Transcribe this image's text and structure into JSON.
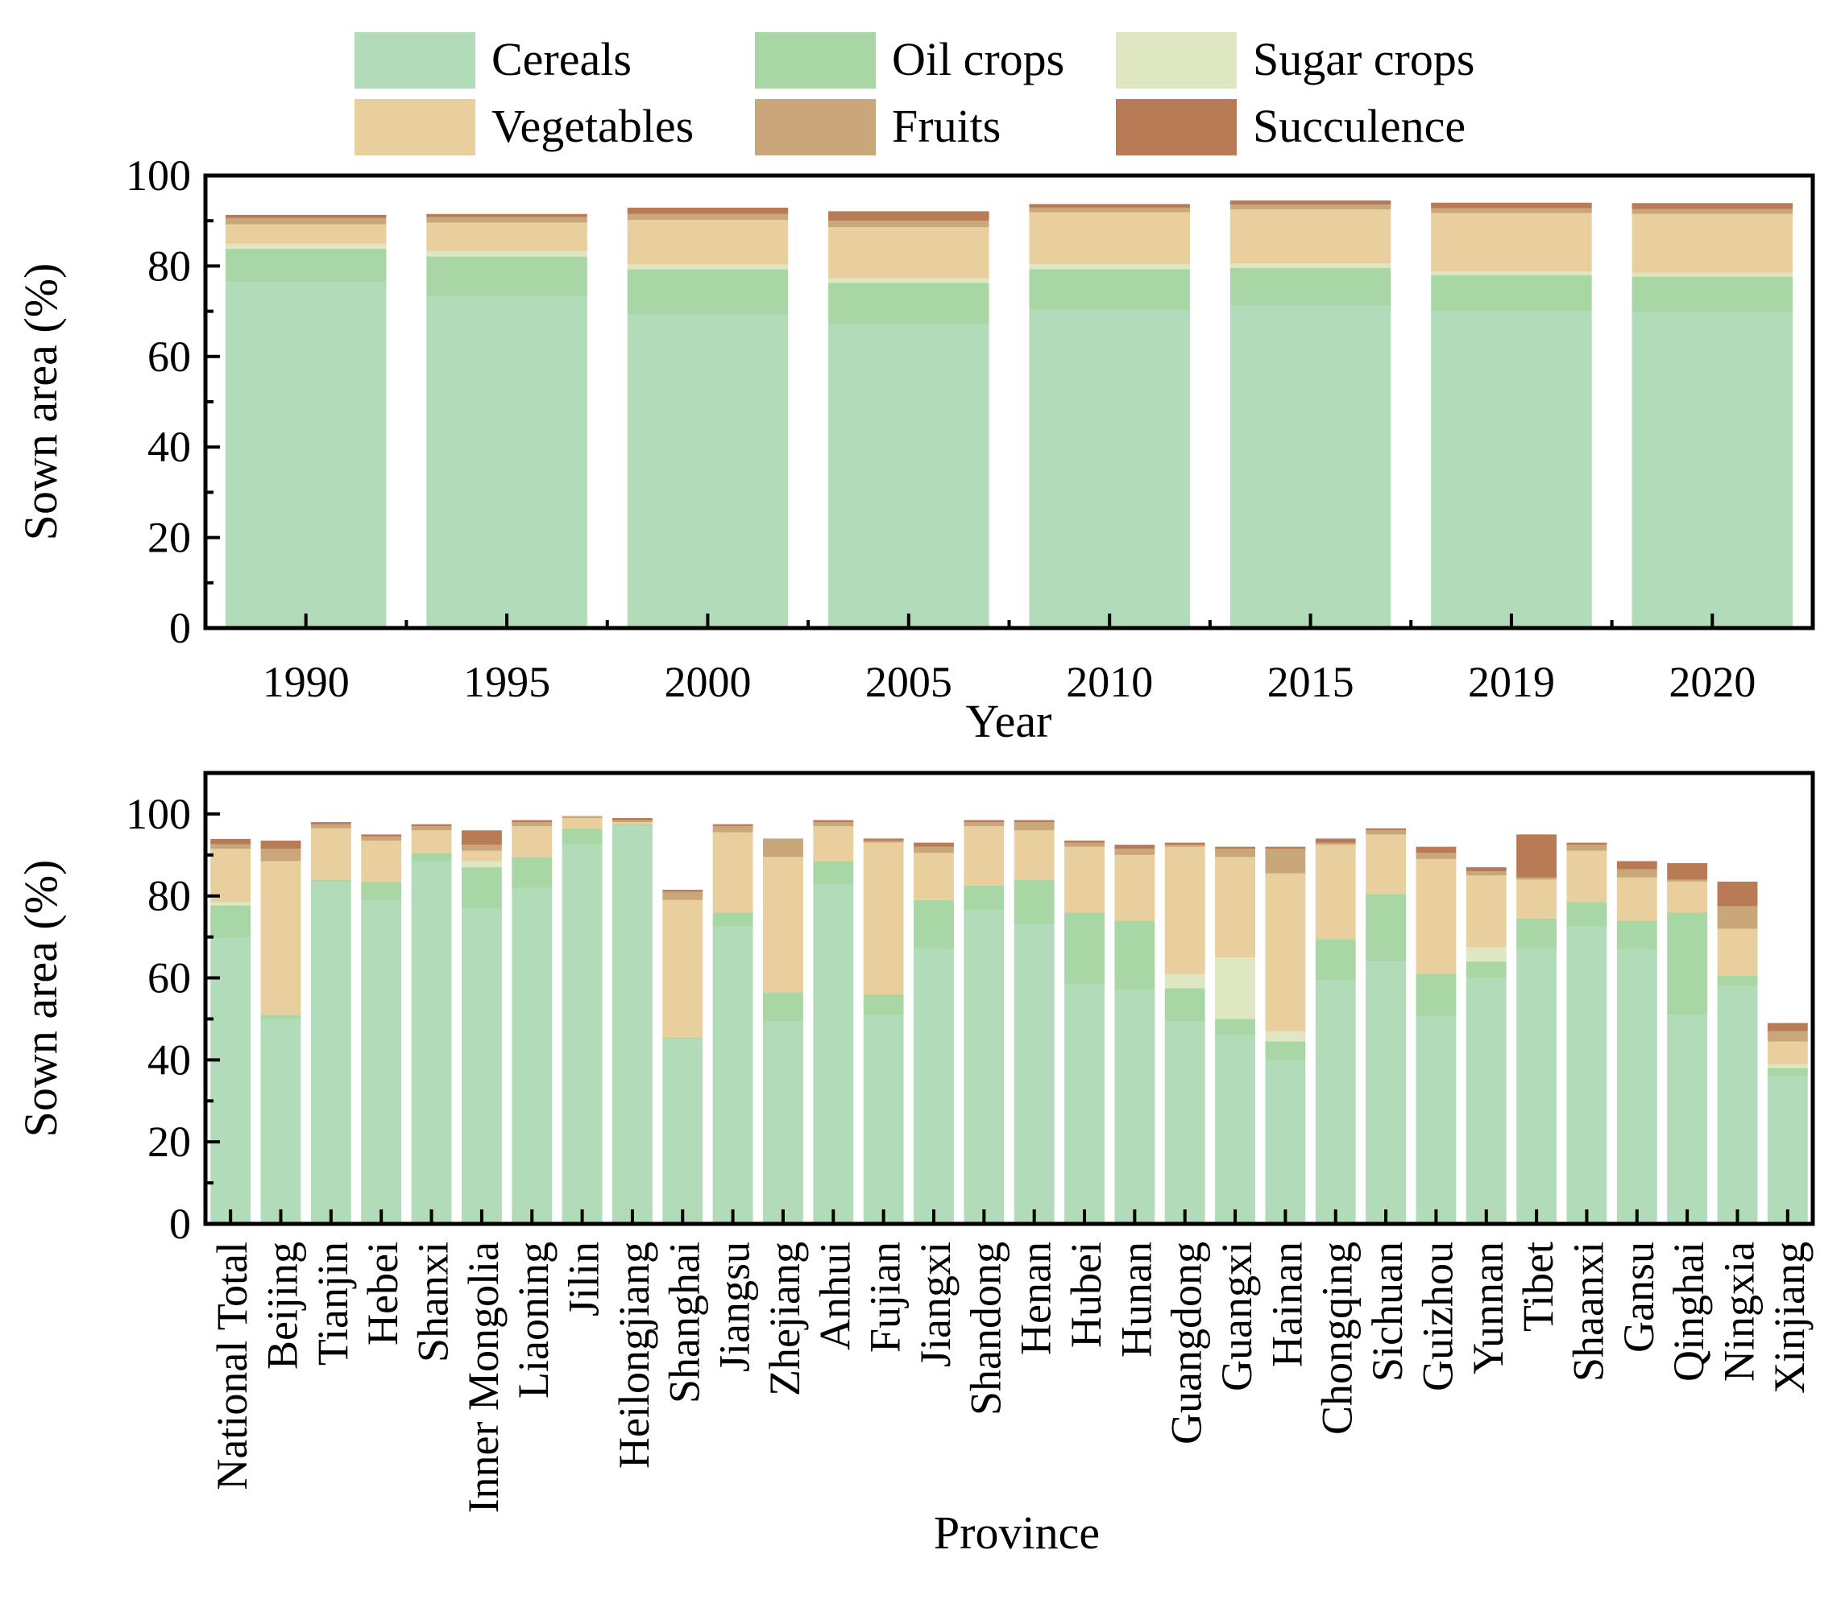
{
  "colors": {
    "Cereals": "#b2dbb9",
    "Oil crops": "#a9d6a5",
    "Sugar crops": "#dfe6c2",
    "Vegetables": "#e8cf9d",
    "Fruits": "#c9a77b",
    "Succulence": "#b97a56"
  },
  "chart_data": [
    {
      "type": "bar",
      "stacked": true,
      "title": "",
      "xlabel": "Year",
      "ylabel": "Sown area (%)",
      "ylim": [
        0,
        100
      ],
      "yticks": [
        0,
        20,
        40,
        60,
        80,
        100
      ],
      "legend": [
        "Cereals",
        "Oil crops",
        "Sugar crops",
        "Vegetables",
        "Fruits",
        "Succulence"
      ],
      "legend_position": "top",
      "categories": [
        "1990",
        "1995",
        "2000",
        "2005",
        "2010",
        "2015",
        "2019",
        "2020"
      ],
      "series": [
        {
          "name": "Cereals",
          "values": [
            76.5,
            73.4,
            69.4,
            67.1,
            70.3,
            71.2,
            70.0,
            69.7
          ]
        },
        {
          "name": "Oil crops",
          "values": [
            7.3,
            8.7,
            9.9,
            9.2,
            9.0,
            8.4,
            8.0,
            8.0
          ]
        },
        {
          "name": "Sugar crops",
          "values": [
            1.1,
            1.2,
            1.0,
            1.0,
            1.1,
            1.0,
            0.8,
            0.8
          ]
        },
        {
          "name": "Vegetables",
          "values": [
            4.3,
            6.3,
            9.9,
            11.3,
            11.5,
            11.9,
            12.9,
            13.0
          ]
        },
        {
          "name": "Fruits",
          "values": [
            1.4,
            1.2,
            1.3,
            1.4,
            1.0,
            1.1,
            1.1,
            1.1
          ]
        },
        {
          "name": "Succulence",
          "values": [
            0.7,
            0.7,
            1.4,
            2.1,
            0.8,
            0.9,
            1.2,
            1.3
          ]
        }
      ]
    },
    {
      "type": "bar",
      "stacked": true,
      "title": "",
      "xlabel": "Province",
      "ylabel": "Sown area (%)",
      "ylim": [
        0,
        110
      ],
      "yticks": [
        0,
        20,
        40,
        60,
        80,
        100
      ],
      "categories": [
        "National Total",
        "Beijing",
        "Tianjin",
        "Hebei",
        "Shanxi",
        "Inner Mongolia",
        "Liaoning",
        "Jilin",
        "Heilongjiang",
        "Shanghai",
        "Jiangsu",
        "Zhejiang",
        "Anhui",
        "Fujian",
        "Jiangxi",
        "Shandong",
        "Henan",
        "Hubei",
        "Hunan",
        "Guangdong",
        "Guangxi",
        "Hainan",
        "Chongqing",
        "Sichuan",
        "Guizhou",
        "Yunnan",
        "Tibet",
        "Shaanxi",
        "Gansu",
        "Qinghai",
        "Ningxia",
        "Xinjiang"
      ],
      "series": [
        {
          "name": "Cereals",
          "values": [
            69.7,
            50.0,
            83.5,
            79.0,
            88.5,
            77.0,
            82.0,
            92.5,
            97.0,
            45.0,
            72.5,
            49.5,
            83.0,
            51.0,
            67.0,
            76.5,
            73.0,
            58.5,
            57.0,
            49.5,
            46.0,
            40.0,
            59.5,
            64.0,
            50.5,
            60.0,
            67.0,
            72.5,
            67.0,
            51.0,
            58.0,
            36.0
          ]
        },
        {
          "name": "Oil crops",
          "values": [
            8.0,
            1.0,
            0.5,
            4.5,
            2.0,
            10.0,
            7.5,
            4.0,
            0.5,
            0.5,
            3.5,
            7.0,
            5.5,
            5.0,
            12.0,
            6.0,
            11.0,
            17.5,
            17.0,
            8.0,
            4.0,
            4.5,
            10.0,
            16.5,
            10.5,
            4.0,
            7.5,
            6.0,
            7.0,
            25.0,
            2.5,
            2.0
          ]
        },
        {
          "name": "Sugar crops",
          "values": [
            0.8,
            0.0,
            0.0,
            0.0,
            0.0,
            1.5,
            0.0,
            0.0,
            0.0,
            0.0,
            0.0,
            0.0,
            0.0,
            0.0,
            0.0,
            0.0,
            0.0,
            0.0,
            0.0,
            3.5,
            15.0,
            2.5,
            0.0,
            0.0,
            0.0,
            3.5,
            0.0,
            0.0,
            0.0,
            0.0,
            0.0,
            1.0
          ]
        },
        {
          "name": "Vegetables",
          "values": [
            13.0,
            37.5,
            12.5,
            10.0,
            5.5,
            2.5,
            7.5,
            2.5,
            0.5,
            33.5,
            19.5,
            33.0,
            8.5,
            37.0,
            11.5,
            14.5,
            12.0,
            16.0,
            16.0,
            31.0,
            24.5,
            38.5,
            23.0,
            14.5,
            28.0,
            17.5,
            9.5,
            12.5,
            10.5,
            7.5,
            11.5,
            5.5
          ]
        },
        {
          "name": "Fruits",
          "values": [
            1.1,
            3.0,
            1.0,
            1.0,
            1.0,
            1.5,
            1.0,
            0.5,
            0.5,
            2.0,
            1.5,
            4.5,
            1.0,
            0.5,
            1.5,
            1.0,
            2.0,
            1.0,
            1.5,
            0.5,
            2.0,
            6.0,
            0.5,
            1.0,
            1.5,
            1.0,
            0.5,
            1.5,
            2.0,
            0.5,
            5.5,
            2.5
          ]
        },
        {
          "name": "Succulence",
          "values": [
            1.3,
            2.0,
            0.5,
            0.5,
            0.5,
            3.5,
            0.5,
            0.0,
            0.5,
            0.5,
            0.5,
            0.0,
            0.5,
            0.5,
            1.0,
            0.5,
            0.5,
            0.5,
            1.0,
            0.5,
            0.5,
            0.5,
            1.0,
            0.5,
            1.5,
            1.0,
            10.5,
            0.5,
            2.0,
            4.0,
            6.0,
            2.0
          ]
        }
      ]
    }
  ]
}
